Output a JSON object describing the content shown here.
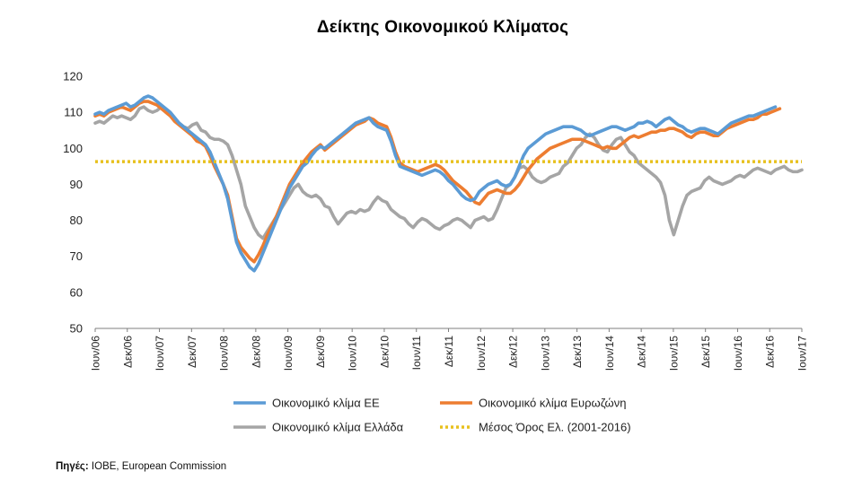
{
  "chart_data": {
    "type": "line",
    "title": "Δείκτης Οικονομικού Κλίματος",
    "ylim": [
      50,
      120
    ],
    "yticks": [
      50,
      60,
      70,
      80,
      90,
      100,
      110,
      120
    ],
    "x_tick_labels": [
      "Ιουν/06",
      "Δεκ/06",
      "Ιουν/07",
      "Δεκ/07",
      "Ιουν/08",
      "Δεκ/08",
      "Ιουν/09",
      "Δεκ/09",
      "Ιουν/10",
      "Δεκ/10",
      "Ιουν/11",
      "Δεκ/11",
      "Ιουν/12",
      "Δεκ/12",
      "Ιουν/13",
      "Δεκ/13",
      "Ιουν/14",
      "Δεκ/14",
      "Ιουν/15",
      "Δεκ/15",
      "Ιουν/16",
      "Δεκ/16",
      "Ιουν/17"
    ],
    "grid": false,
    "legend_position": "bottom",
    "series": [
      {
        "name": "Οικονομικό κλίμα ΕΕ",
        "color": "#5b9bd5",
        "style": "solid",
        "values": [
          109.5,
          110,
          109.5,
          110.5,
          111,
          111.5,
          112,
          112.5,
          111.5,
          112,
          113,
          114,
          114.5,
          114,
          113,
          112,
          111,
          110,
          108.5,
          107,
          106,
          105,
          104,
          103,
          102,
          101,
          99,
          96,
          93,
          90,
          86,
          80,
          74,
          71,
          69,
          67,
          66,
          68,
          71,
          74,
          77,
          80,
          83,
          86,
          89,
          91,
          93,
          95,
          96,
          98,
          99.5,
          100.5,
          100,
          101,
          102,
          103,
          104,
          105,
          106,
          107,
          107.5,
          108,
          108.5,
          107,
          106,
          105.5,
          105,
          102,
          98,
          95,
          94.5,
          94,
          93.5,
          93,
          92.5,
          93,
          93.5,
          94,
          93.5,
          92.5,
          91,
          90,
          88.5,
          87,
          86,
          85.5,
          86,
          88,
          89,
          90,
          90.5,
          91,
          90,
          89.5,
          90,
          92,
          95,
          98,
          100,
          101,
          102,
          103,
          104,
          104.5,
          105,
          105.5,
          106,
          106,
          106,
          105.5,
          105,
          104,
          103.5,
          104,
          104.5,
          105,
          105.5,
          106,
          106,
          105.5,
          105,
          105.5,
          106,
          107,
          107,
          107.5,
          107,
          106,
          107,
          108,
          108.5,
          107.5,
          106.5,
          106,
          105,
          104.5,
          105,
          105.5,
          105.5,
          105,
          104.5,
          104,
          105,
          106,
          107,
          107.5,
          108,
          108.5,
          109,
          109,
          109.5,
          110,
          110.5,
          111,
          111.5
        ]
      },
      {
        "name": "Οικονομικό κλίμα Ευρωζώνη",
        "color": "#ed7d31",
        "style": "solid",
        "values": [
          109,
          109.5,
          109,
          110,
          110.5,
          111,
          111.5,
          111,
          110.5,
          111.5,
          112.5,
          113,
          113,
          112.5,
          112,
          111,
          110,
          109,
          107.5,
          106.5,
          105.5,
          104.5,
          103.5,
          102,
          101.5,
          100.5,
          98,
          95,
          92.5,
          90,
          87,
          81,
          75,
          72.5,
          71,
          69.5,
          68.5,
          70.5,
          73,
          76,
          78.5,
          81,
          84,
          87,
          90,
          92,
          94,
          96,
          97.5,
          99,
          100,
          101,
          99.5,
          100.5,
          101.5,
          102.5,
          103.5,
          104.5,
          105.5,
          106.5,
          107,
          107.5,
          108.5,
          108,
          107,
          106.5,
          106,
          103,
          99,
          96,
          95,
          94.5,
          94,
          93.5,
          94,
          94.5,
          95,
          95.5,
          95,
          94,
          92.5,
          91,
          90,
          89,
          88,
          86.5,
          85,
          84.5,
          86,
          87.5,
          88,
          88.5,
          88,
          87.5,
          87.5,
          88.5,
          90,
          92,
          94,
          95.5,
          97,
          98,
          99,
          100,
          100.5,
          101,
          101.5,
          102,
          102.5,
          102.5,
          102.5,
          102,
          101.5,
          101,
          100.5,
          100,
          100.5,
          100,
          100,
          101,
          102,
          103,
          103.5,
          103,
          103.5,
          104,
          104.5,
          104.5,
          105,
          105,
          105.5,
          105.5,
          105,
          104.5,
          103.5,
          103,
          104,
          104.5,
          104.5,
          104,
          103.5,
          103.5,
          104.5,
          105.5,
          106,
          106.5,
          107,
          107.5,
          108,
          108,
          108.5,
          109.5,
          109.5,
          110,
          110.5,
          111
        ]
      },
      {
        "name": "Οικονομικό κλίμα Ελλάδα",
        "color": "#a5a5a5",
        "style": "solid",
        "values": [
          107,
          107.5,
          107,
          108,
          109,
          108.5,
          109,
          108.5,
          108,
          109,
          111,
          111.5,
          110.5,
          110,
          110.5,
          111.5,
          110,
          109,
          108,
          107,
          106,
          105.5,
          106.5,
          107,
          105,
          104.5,
          103,
          102.5,
          102.5,
          102,
          101,
          98,
          94,
          90,
          84,
          81,
          78,
          76,
          75,
          77,
          79,
          81,
          83,
          85,
          87,
          89,
          90,
          88,
          87,
          86.5,
          87,
          86,
          84,
          83.5,
          81,
          79,
          80.5,
          82,
          82.5,
          82,
          83,
          82.5,
          83,
          85,
          86.5,
          85.5,
          85,
          83,
          82,
          81,
          80.5,
          79,
          78,
          79.5,
          80.5,
          80,
          79,
          78,
          77.5,
          78.5,
          79,
          80,
          80.5,
          80,
          79,
          78,
          80,
          80.5,
          81,
          80,
          80.5,
          83,
          86,
          89,
          90,
          92,
          94.5,
          95,
          94,
          92,
          91,
          90.5,
          91,
          92,
          92.5,
          93,
          95,
          96,
          98,
          100,
          101,
          103,
          104,
          103,
          101,
          99.5,
          99,
          101,
          102.5,
          103,
          101,
          99,
          98,
          96,
          95,
          94,
          93,
          92,
          90.5,
          87,
          80,
          76,
          80,
          84,
          87,
          88,
          88.5,
          89,
          91,
          92,
          91,
          90.5,
          90,
          90.5,
          91,
          92,
          92.5,
          92,
          93,
          94,
          94.5,
          94,
          93.5,
          93,
          94,
          94.5,
          95,
          94,
          93.5,
          93.5,
          94
        ]
      },
      {
        "name": "Μέσος Όρος Ελ. (2001-2016)",
        "color": "#e8c11e",
        "style": "dotted",
        "constant": 96.3
      }
    ],
    "source_label": "Πηγές:",
    "source_text": " ΙΟΒΕ, European Commission"
  }
}
